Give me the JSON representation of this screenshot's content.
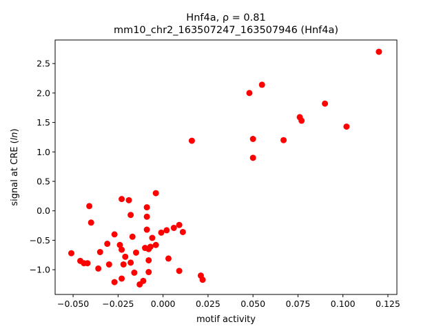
{
  "chart_data": {
    "type": "scatter",
    "title_line1": "Hnf4a, ρ = 0.81",
    "title_line2": "mm10_chr2_163507247_163507946 (Hnf4a)",
    "xlabel": "motif activity",
    "ylabel_prefix": "signal at CRE (",
    "ylabel_var": "ln",
    "ylabel_suffix": ")",
    "xlim": [
      -0.06,
      0.13
    ],
    "ylim": [
      -1.42,
      2.9
    ],
    "x_ticks": [
      -0.05,
      -0.025,
      0.0,
      0.025,
      0.05,
      0.075,
      0.1,
      0.125
    ],
    "x_tick_labels": [
      "−0.050",
      "−0.025",
      "0.000",
      "0.025",
      "0.050",
      "0.075",
      "0.100",
      "0.125"
    ],
    "y_ticks": [
      -1.0,
      -0.5,
      0.0,
      0.5,
      1.0,
      1.5,
      2.0,
      2.5
    ],
    "y_tick_labels": [
      "−1.0",
      "−0.5",
      "0.0",
      "0.5",
      "1.0",
      "1.5",
      "2.0",
      "2.5"
    ],
    "marker_color": "#ff0000",
    "grid": false,
    "points": [
      [
        0.12,
        2.7
      ],
      [
        0.055,
        2.14
      ],
      [
        0.048,
        2.0
      ],
      [
        0.09,
        1.82
      ],
      [
        0.076,
        1.59
      ],
      [
        0.077,
        1.53
      ],
      [
        0.102,
        1.43
      ],
      [
        0.05,
        1.22
      ],
      [
        0.067,
        1.2
      ],
      [
        0.016,
        1.19
      ],
      [
        0.05,
        0.9
      ],
      [
        -0.004,
        0.3
      ],
      [
        -0.023,
        0.2
      ],
      [
        -0.019,
        0.18
      ],
      [
        -0.041,
        0.08
      ],
      [
        -0.009,
        0.06
      ],
      [
        -0.018,
        -0.07
      ],
      [
        -0.009,
        -0.1
      ],
      [
        -0.04,
        -0.2
      ],
      [
        0.009,
        -0.24
      ],
      [
        -0.009,
        -0.32
      ],
      [
        0.006,
        -0.29
      ],
      [
        0.002,
        -0.33
      ],
      [
        0.011,
        -0.36
      ],
      [
        -0.001,
        -0.37
      ],
      [
        -0.027,
        -0.4
      ],
      [
        -0.017,
        -0.44
      ],
      [
        -0.006,
        -0.46
      ],
      [
        -0.031,
        -0.56
      ],
      [
        -0.024,
        -0.58
      ],
      [
        -0.004,
        -0.58
      ],
      [
        -0.007,
        -0.61
      ],
      [
        -0.01,
        -0.63
      ],
      [
        -0.008,
        -0.65
      ],
      [
        -0.023,
        -0.66
      ],
      [
        -0.015,
        -0.71
      ],
      [
        -0.035,
        -0.7
      ],
      [
        -0.051,
        -0.72
      ],
      [
        -0.021,
        -0.78
      ],
      [
        0.003,
        -0.81
      ],
      [
        -0.046,
        -0.85
      ],
      [
        -0.044,
        -0.89
      ],
      [
        -0.018,
        -0.88
      ],
      [
        -0.042,
        -0.89
      ],
      [
        -0.008,
        -0.84
      ],
      [
        -0.03,
        -0.91
      ],
      [
        -0.022,
        -0.91
      ],
      [
        -0.036,
        -0.98
      ],
      [
        -0.016,
        -1.05
      ],
      [
        -0.008,
        -1.04
      ],
      [
        0.009,
        -1.02
      ],
      [
        -0.023,
        -1.15
      ],
      [
        -0.011,
        -1.19
      ],
      [
        -0.027,
        -1.21
      ],
      [
        -0.013,
        -1.25
      ],
      [
        0.021,
        -1.1
      ],
      [
        0.022,
        -1.17
      ]
    ]
  }
}
